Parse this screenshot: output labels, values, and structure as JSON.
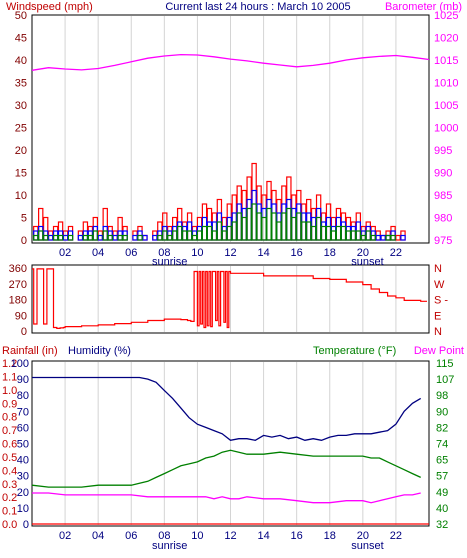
{
  "header": {
    "left_label": "Windspeed (mph)",
    "title": "Current last 24 hours : March 10 2005",
    "right_label": "Barometer (mb)"
  },
  "bottom_header": {
    "rainfall_label": "Rainfall (in)",
    "humidity_label": "Humidity (%)",
    "temperature_label": "Temperature (°F)",
    "dewpoint_label": "Dew Point"
  },
  "time_axis": {
    "ticks": [
      "02",
      "04",
      "06",
      "08",
      "10",
      "12",
      "14",
      "16",
      "18",
      "20",
      "22"
    ],
    "sunrise_label": "sunrise",
    "sunset_label": "sunset",
    "sunrise_hour": 7.6,
    "sunset_hour": 20.4
  },
  "colors": {
    "wind_avg": "#008000",
    "wind_gust": "#ff0000",
    "wind_mid": "#0000ff",
    "barometer": "#ff00ff",
    "direction": "#ff0000",
    "humidity": "#000080",
    "temperature": "#008000",
    "dewpoint": "#ff00ff",
    "rain": "#ff0000",
    "left_axis": "#800000",
    "right_axis": "#ff00ff",
    "humidity_axis": "#000080",
    "temp_axis": "#008000"
  },
  "chart_data": [
    {
      "type": "bar",
      "name": "wind-barometer",
      "x_range": [
        0,
        24
      ],
      "left_axis": {
        "label": "Windspeed (mph)",
        "range": [
          0,
          50
        ],
        "ticks": [
          "0",
          "5",
          "10",
          "15",
          "20",
          "25",
          "30",
          "35",
          "40",
          "45",
          "50"
        ]
      },
      "right_axis": {
        "label": "Barometer (mb)",
        "range": [
          975,
          1025
        ],
        "ticks": [
          "975",
          "980",
          "985",
          "990",
          "995",
          "1000",
          "1005",
          "1010",
          "1015",
          "1020",
          "1025"
        ]
      },
      "wind_gust": {
        "x": [
          0.1,
          0.4,
          0.7,
          1.0,
          1.3,
          1.6,
          1.9,
          2.2,
          2.5,
          2.8,
          3.1,
          3.4,
          3.7,
          4.0,
          4.3,
          4.6,
          4.9,
          5.2,
          5.5,
          5.8,
          6.1,
          6.4,
          6.7,
          7.0,
          7.3,
          7.6,
          7.9,
          8.2,
          8.5,
          8.8,
          9.1,
          9.4,
          9.7,
          10.0,
          10.3,
          10.6,
          10.9,
          11.2,
          11.5,
          11.8,
          12.1,
          12.4,
          12.7,
          13.0,
          13.3,
          13.6,
          13.9,
          14.2,
          14.5,
          14.8,
          15.1,
          15.4,
          15.7,
          16.0,
          16.3,
          16.6,
          16.9,
          17.2,
          17.5,
          17.8,
          18.1,
          18.4,
          18.7,
          19.0,
          19.3,
          19.6,
          19.9,
          20.2,
          20.5,
          20.8,
          21.1,
          21.4,
          21.7,
          22.0,
          22.3,
          22.6
        ],
        "y": [
          3,
          7,
          5,
          2,
          3,
          4,
          2,
          3,
          0,
          2,
          4,
          3,
          5,
          2,
          7,
          3,
          2,
          5,
          3,
          0,
          2,
          3,
          1,
          0,
          2,
          4,
          6,
          3,
          5,
          7,
          4,
          6,
          3,
          5,
          8,
          7,
          6,
          9,
          5,
          8,
          10,
          12,
          11,
          14,
          17,
          12,
          10,
          13,
          11,
          9,
          12,
          14,
          10,
          11,
          8,
          9,
          7,
          10,
          6,
          8,
          5,
          7,
          6,
          5,
          4,
          6,
          3,
          4,
          3,
          2,
          1,
          2,
          3,
          1,
          2,
          0
        ]
      },
      "wind_mid": {
        "x": [
          0.1,
          0.4,
          0.7,
          1.0,
          1.3,
          1.6,
          1.9,
          2.2,
          2.5,
          2.8,
          3.1,
          3.4,
          3.7,
          4.0,
          4.3,
          4.6,
          4.9,
          5.2,
          5.5,
          5.8,
          6.1,
          6.4,
          6.7,
          7.0,
          7.3,
          7.6,
          7.9,
          8.2,
          8.5,
          8.8,
          9.1,
          9.4,
          9.7,
          10.0,
          10.3,
          10.6,
          10.9,
          11.2,
          11.5,
          11.8,
          12.1,
          12.4,
          12.7,
          13.0,
          13.3,
          13.6,
          13.9,
          14.2,
          14.5,
          14.8,
          15.1,
          15.4,
          15.7,
          16.0,
          16.3,
          16.6,
          16.9,
          17.2,
          17.5,
          17.8,
          18.1,
          18.4,
          18.7,
          19.0,
          19.3,
          19.6,
          19.9,
          20.2,
          20.5,
          20.8,
          21.1,
          21.4,
          21.7,
          22.0,
          22.3,
          22.6
        ],
        "y": [
          2,
          3,
          2,
          1,
          2,
          2,
          1,
          2,
          0,
          1,
          2,
          2,
          3,
          1,
          3,
          2,
          1,
          2,
          2,
          0,
          1,
          2,
          1,
          0,
          1,
          2,
          3,
          2,
          3,
          4,
          3,
          4,
          2,
          3,
          5,
          4,
          4,
          6,
          3,
          5,
          6,
          8,
          7,
          9,
          11,
          8,
          7,
          9,
          8,
          6,
          8,
          9,
          7,
          8,
          6,
          6,
          5,
          7,
          4,
          5,
          3,
          5,
          4,
          3,
          3,
          4,
          2,
          3,
          2,
          1,
          1,
          1,
          2,
          0,
          1,
          0
        ]
      },
      "wind_avg": {
        "x": [
          0.1,
          0.4,
          0.7,
          1.0,
          1.3,
          1.6,
          1.9,
          2.2,
          2.5,
          2.8,
          3.1,
          3.4,
          3.7,
          4.0,
          4.3,
          4.6,
          4.9,
          5.2,
          5.5,
          5.8,
          6.1,
          6.4,
          6.7,
          7.0,
          7.3,
          7.6,
          7.9,
          8.2,
          8.5,
          8.8,
          9.1,
          9.4,
          9.7,
          10.0,
          10.3,
          10.6,
          10.9,
          11.2,
          11.5,
          11.8,
          12.1,
          12.4,
          12.7,
          13.0,
          13.3,
          13.6,
          13.9,
          14.2,
          14.5,
          14.8,
          15.1,
          15.4,
          15.7,
          16.0,
          16.3,
          16.6,
          16.9,
          17.2,
          17.5,
          17.8,
          18.1,
          18.4,
          18.7,
          19.0,
          19.3,
          19.6,
          19.9,
          20.2,
          20.5,
          20.8,
          21.1,
          21.4,
          21.7,
          22.0,
          22.3,
          22.6
        ],
        "y": [
          1,
          2,
          1,
          0,
          1,
          1,
          0,
          1,
          0,
          0,
          1,
          1,
          2,
          0,
          2,
          1,
          0,
          1,
          1,
          0,
          0,
          1,
          0,
          0,
          0,
          1,
          2,
          1,
          2,
          3,
          2,
          2,
          1,
          2,
          3,
          3,
          2,
          4,
          2,
          3,
          4,
          6,
          5,
          7,
          8,
          6,
          5,
          7,
          6,
          4,
          6,
          7,
          5,
          6,
          4,
          4,
          3,
          5,
          3,
          3,
          2,
          3,
          3,
          2,
          2,
          2,
          1,
          2,
          1,
          0,
          0,
          1,
          1,
          0,
          0,
          0
        ]
      },
      "barometer": {
        "x": [
          0,
          1,
          2,
          3,
          4,
          5,
          6,
          7,
          8,
          9,
          10,
          11,
          12,
          13,
          14,
          15,
          16,
          17,
          18,
          19,
          20,
          21,
          22,
          23,
          24
        ],
        "y": [
          1012.7,
          1013.3,
          1013.0,
          1012.8,
          1013.1,
          1013.8,
          1014.6,
          1015.4,
          1015.9,
          1016.2,
          1016.1,
          1015.7,
          1015.2,
          1014.8,
          1014.3,
          1013.9,
          1013.5,
          1013.8,
          1014.3,
          1015.0,
          1015.5,
          1015.8,
          1016.0,
          1015.6,
          1015.1
        ]
      }
    },
    {
      "type": "line",
      "name": "wind-direction",
      "x_range": [
        0,
        24
      ],
      "left_axis": {
        "range": [
          0,
          360
        ],
        "ticks": [
          "0",
          "90",
          "180",
          "270",
          "360"
        ]
      },
      "right_axis": {
        "ticks": [
          "N",
          "W",
          "S -",
          "E",
          "N"
        ]
      },
      "direction": {
        "x": [
          0,
          0.1,
          0.3,
          0.5,
          0.7,
          0.9,
          1.1,
          1.3,
          1.5,
          1.7,
          1.9,
          2.0,
          3,
          4,
          5,
          6,
          7,
          8,
          9,
          9.4,
          9.6,
          9.8,
          10.0,
          10.1,
          10.2,
          10.3,
          10.4,
          10.5,
          10.6,
          10.7,
          10.8,
          10.9,
          11.0,
          11.1,
          11.2,
          11.3,
          11.4,
          11.5,
          11.6,
          11.7,
          11.8,
          11.9,
          12.0,
          13,
          14,
          15,
          16,
          17,
          18,
          19,
          20,
          20.5,
          21,
          21.5,
          22,
          22.5,
          23.5
        ],
        "y": [
          355,
          40,
          355,
          355,
          40,
          355,
          355,
          20,
          15,
          18,
          20,
          25,
          30,
          35,
          42,
          50,
          60,
          68,
          65,
          60,
          55,
          340,
          30,
          340,
          40,
          340,
          20,
          340,
          30,
          340,
          25,
          340,
          340,
          60,
          340,
          30,
          340,
          340,
          50,
          340,
          20,
          340,
          330,
          330,
          315,
          315,
          315,
          300,
          295,
          280,
          265,
          240,
          220,
          200,
          190,
          175,
          170
        ]
      }
    },
    {
      "type": "line",
      "name": "humidity-temperature",
      "x_range": [
        0,
        24
      ],
      "humidity_axis": {
        "label": "Humidity (%)",
        "range": [
          0,
          100
        ],
        "ticks": [
          "0",
          "10",
          "20",
          "30",
          "40",
          "50",
          "60",
          "70",
          "80",
          "90",
          "100"
        ]
      },
      "rainfall_axis": {
        "label": "Rainfall (in)",
        "range": [
          0,
          1.2
        ],
        "ticks": [
          "0.0",
          "0.1",
          "0.2",
          "0.3",
          "0.4",
          "0.5",
          "0.6",
          "0.7",
          "0.8",
          "0.9",
          "1.0",
          "1.1",
          "1.2"
        ]
      },
      "temperature_axis": {
        "label": "Temperature (°F)",
        "range": [
          32,
          115
        ],
        "ticks": [
          "32",
          "40",
          "49",
          "57",
          "65",
          "74",
          "82",
          "90",
          "98",
          "107",
          "115"
        ]
      },
      "humidity": {
        "x": [
          0,
          1,
          2,
          3,
          4,
          5,
          6,
          6.5,
          7,
          7.5,
          8,
          8.5,
          9,
          9.5,
          10,
          10.5,
          11,
          11.5,
          12,
          12.5,
          13,
          13.5,
          14,
          14.5,
          15,
          15.5,
          16,
          16.5,
          17,
          17.5,
          18,
          18.5,
          19,
          19.5,
          20,
          20.5,
          21,
          21.5,
          22,
          22.5,
          23,
          23.5
        ],
        "y": [
          91,
          91,
          91,
          91,
          91,
          91,
          91,
          91,
          90,
          88,
          83,
          78,
          72,
          66,
          62,
          60,
          58,
          56,
          52,
          53,
          53,
          52,
          55,
          54,
          55,
          53,
          54,
          52,
          53,
          52,
          54,
          55,
          55,
          56,
          56,
          56,
          57,
          58,
          62,
          70,
          75,
          78
        ]
      },
      "temperature": {
        "x": [
          0,
          1,
          2,
          3,
          4,
          5,
          6,
          6.5,
          7,
          7.5,
          8,
          8.5,
          9,
          9.5,
          10,
          10.5,
          11,
          11.5,
          12,
          12.5,
          13,
          14,
          15,
          16,
          17,
          18,
          19,
          20,
          20.5,
          21,
          21.5,
          22,
          22.5,
          23,
          23.5
        ],
        "y": [
          52,
          51,
          51,
          51,
          52,
          52,
          52,
          53,
          54,
          56,
          58,
          60,
          62,
          63,
          64,
          66,
          67,
          69,
          70,
          69,
          68,
          68,
          69,
          68,
          67,
          67,
          67,
          67,
          66,
          66,
          64,
          62,
          60,
          58,
          56
        ]
      },
      "dewpoint": {
        "x": [
          0,
          1,
          2,
          3,
          4,
          5,
          6,
          7,
          8,
          9,
          10,
          10.5,
          11,
          11.5,
          12,
          12.5,
          13,
          14,
          15,
          16,
          17,
          18,
          19,
          20,
          20.5,
          21,
          21.5,
          22,
          22.5,
          23,
          23.5
        ],
        "y": [
          48,
          48,
          47,
          47,
          47,
          47,
          47,
          46,
          46,
          46,
          46,
          46,
          45,
          46,
          45,
          45,
          46,
          45,
          45,
          44,
          43,
          43,
          44,
          44,
          43,
          44,
          45,
          46,
          47,
          47,
          48
        ]
      },
      "rainfall": {
        "x": [
          0,
          24
        ],
        "y": [
          0.0,
          0.0
        ]
      }
    }
  ]
}
